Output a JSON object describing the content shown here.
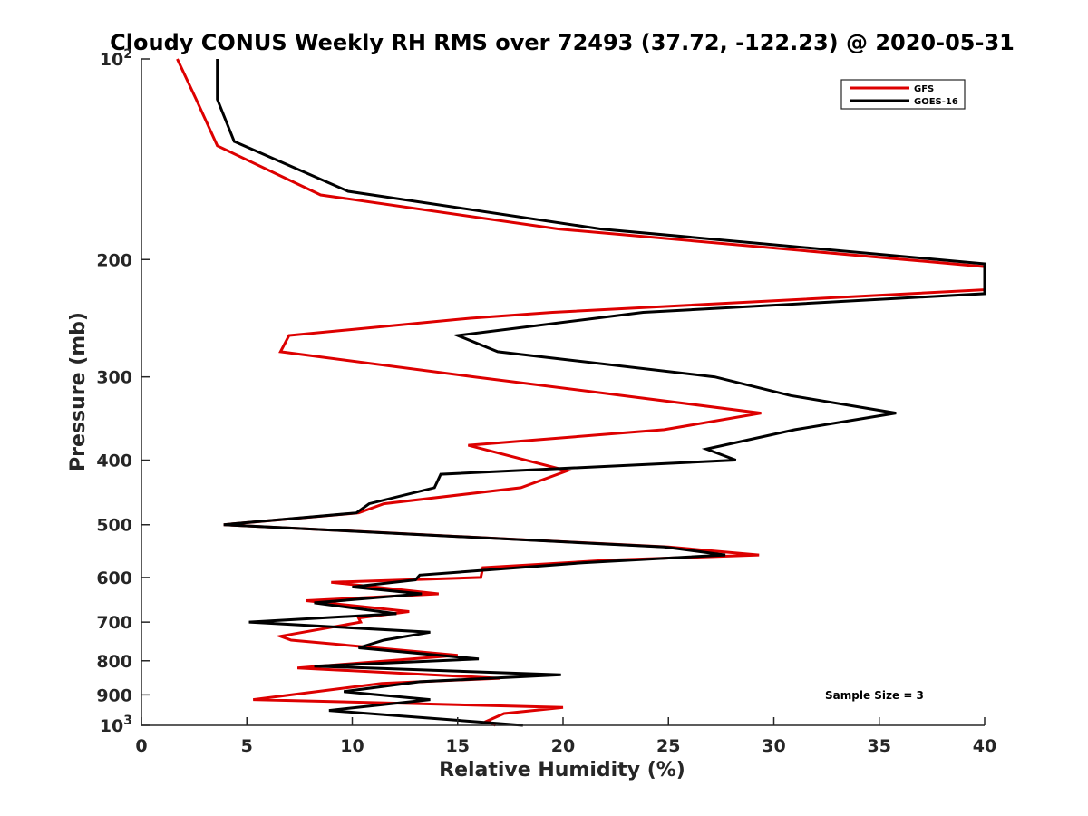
{
  "chart_data": {
    "type": "line",
    "title": "Cloudy CONUS Weekly RH RMS over 72493 (37.72, -122.23) @ 2020-05-31",
    "xlabel": "Relative Humidity (%)",
    "ylabel": "Pressure (mb)",
    "xlim": [
      0,
      40
    ],
    "ylim": [
      100,
      1000
    ],
    "y_scale": "log",
    "y_reversed": true,
    "grid": false,
    "legend_position": "top-right",
    "x_ticks": [
      "0",
      "5",
      "10",
      "15",
      "20",
      "25",
      "30",
      "35",
      "40"
    ],
    "y_ticks": [
      {
        "value": 100,
        "label": "10",
        "sup": "2"
      },
      {
        "value": 200,
        "label": "200"
      },
      {
        "value": 300,
        "label": "300"
      },
      {
        "value": 400,
        "label": "400"
      },
      {
        "value": 500,
        "label": "500"
      },
      {
        "value": 600,
        "label": "600"
      },
      {
        "value": 700,
        "label": "700"
      },
      {
        "value": 800,
        "label": "800"
      },
      {
        "value": 900,
        "label": "900"
      },
      {
        "value": 1000,
        "label": "10",
        "sup": "3"
      }
    ],
    "annotation": "Sample Size = 3",
    "series": [
      {
        "name": "GFS",
        "color": "#dd0000",
        "points": [
          [
            1.7,
            100
          ],
          [
            2.6,
            115
          ],
          [
            3.6,
            135
          ],
          [
            8.5,
            160
          ],
          [
            19.8,
            180
          ],
          [
            40.0,
            205
          ],
          [
            40.0,
            222
          ],
          [
            19.5,
            240
          ],
          [
            15.6,
            245
          ],
          [
            7.0,
            260
          ],
          [
            6.6,
            275
          ],
          [
            15.8,
            300
          ],
          [
            29.4,
            340
          ],
          [
            24.8,
            360
          ],
          [
            15.5,
            380
          ],
          [
            20.2,
            415
          ],
          [
            18.0,
            440
          ],
          [
            11.5,
            465
          ],
          [
            10.3,
            480
          ],
          [
            3.9,
            500
          ],
          [
            25.0,
            540
          ],
          [
            29.3,
            555
          ],
          [
            22.2,
            565
          ],
          [
            16.2,
            580
          ],
          [
            16.1,
            600
          ],
          [
            9.0,
            610
          ],
          [
            14.1,
            635
          ],
          [
            7.8,
            650
          ],
          [
            12.7,
            675
          ],
          [
            10.3,
            690
          ],
          [
            10.4,
            700
          ],
          [
            6.6,
            735
          ],
          [
            7.1,
            745
          ],
          [
            15.0,
            785
          ],
          [
            7.4,
            820
          ],
          [
            17.0,
            850
          ],
          [
            11.4,
            865
          ],
          [
            5.3,
            915
          ],
          [
            20.0,
            940
          ],
          [
            17.2,
            960
          ],
          [
            16.4,
            985
          ],
          [
            16.8,
            1000
          ]
        ]
      },
      {
        "name": "GOES-16",
        "color": "#000000",
        "points": [
          [
            3.6,
            100
          ],
          [
            3.6,
            115
          ],
          [
            4.4,
            133
          ],
          [
            9.8,
            158
          ],
          [
            21.8,
            180
          ],
          [
            40.0,
            203
          ],
          [
            40.0,
            225
          ],
          [
            23.8,
            240
          ],
          [
            15.0,
            260
          ],
          [
            16.9,
            275
          ],
          [
            27.2,
            300
          ],
          [
            30.8,
            320
          ],
          [
            35.8,
            340
          ],
          [
            31.0,
            360
          ],
          [
            26.8,
            385
          ],
          [
            28.2,
            400
          ],
          [
            14.2,
            420
          ],
          [
            13.9,
            440
          ],
          [
            10.8,
            465
          ],
          [
            10.2,
            480
          ],
          [
            3.9,
            500
          ],
          [
            24.8,
            540
          ],
          [
            27.7,
            555
          ],
          [
            21.0,
            570
          ],
          [
            13.2,
            595
          ],
          [
            13.0,
            605
          ],
          [
            10.0,
            620
          ],
          [
            13.3,
            635
          ],
          [
            8.2,
            655
          ],
          [
            12.1,
            680
          ],
          [
            5.1,
            700
          ],
          [
            13.7,
            725
          ],
          [
            11.5,
            745
          ],
          [
            10.3,
            765
          ],
          [
            16.0,
            795
          ],
          [
            8.2,
            815
          ],
          [
            19.9,
            840
          ],
          [
            13.2,
            860
          ],
          [
            9.6,
            890
          ],
          [
            13.7,
            915
          ],
          [
            8.9,
            950
          ],
          [
            18.1,
            1000
          ]
        ]
      }
    ]
  }
}
